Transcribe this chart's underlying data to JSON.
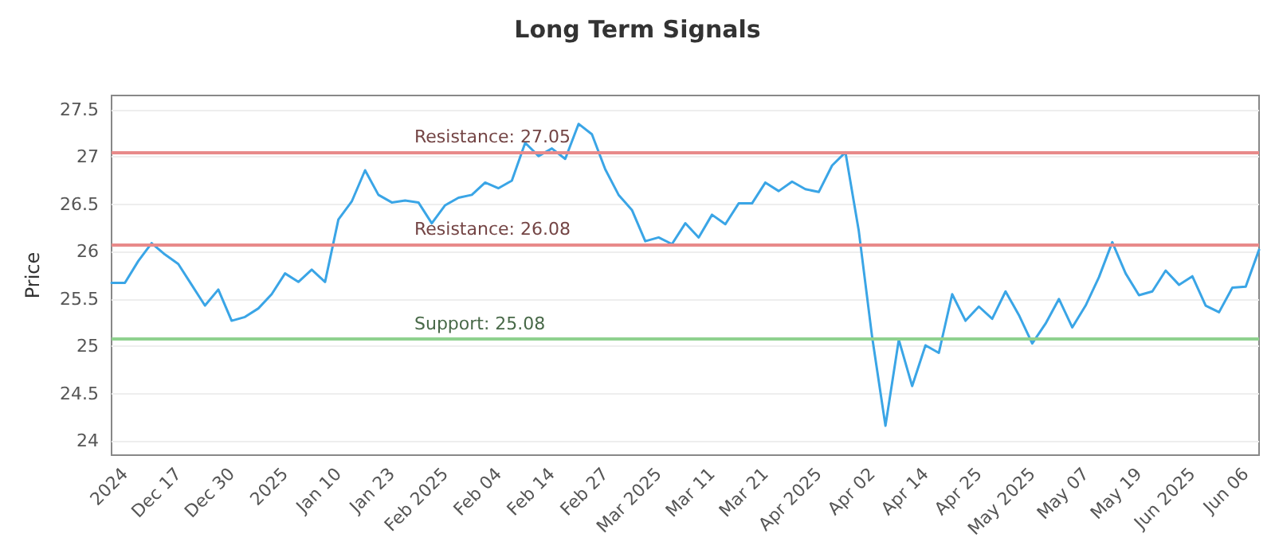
{
  "chart_data": {
    "type": "line",
    "title": "Long Term Signals",
    "ylabel": "Price",
    "categories": [
      null,
      "2024",
      null,
      null,
      null,
      "Dec 17",
      null,
      null,
      null,
      "Dec 30",
      null,
      null,
      null,
      "2025",
      null,
      null,
      null,
      "Jan 10",
      null,
      null,
      null,
      "Jan 23",
      null,
      null,
      null,
      "Feb 2025",
      null,
      null,
      null,
      "Feb 04",
      null,
      null,
      null,
      "Feb 14",
      null,
      null,
      null,
      "Feb 27",
      null,
      null,
      null,
      "Mar 2025",
      null,
      null,
      null,
      "Mar 11",
      null,
      null,
      null,
      "Mar 21",
      null,
      null,
      null,
      "Apr 2025",
      null,
      null,
      null,
      "Apr 02",
      null,
      null,
      null,
      "Apr 14",
      null,
      null,
      null,
      "Apr 25",
      null,
      null,
      null,
      "May 2025",
      null,
      null,
      null,
      "May 07",
      null,
      null,
      null,
      "May 19",
      null,
      null,
      null,
      "Jun 2025",
      null,
      null,
      null,
      "Jun 06",
      null
    ],
    "ylim": [
      23.85,
      27.65
    ],
    "yticks": [
      24.0,
      24.5,
      25.0,
      25.5,
      26.0,
      26.5,
      27.0,
      27.5
    ],
    "grid": "y",
    "marker": "none",
    "line_style": "solid",
    "series": [
      {
        "color": "#3aa5e6",
        "values": [
          25.67,
          25.67,
          25.9,
          26.09,
          25.97,
          25.87,
          25.65,
          25.43,
          25.6,
          25.27,
          25.31,
          25.4,
          25.55,
          25.77,
          25.68,
          25.81,
          25.68,
          26.34,
          26.53,
          26.86,
          26.6,
          26.52,
          26.54,
          26.52,
          26.3,
          26.49,
          26.57,
          26.6,
          26.73,
          26.67,
          26.75,
          27.15,
          27.01,
          27.09,
          26.98,
          27.35,
          27.24,
          26.87,
          26.6,
          26.44,
          26.11,
          26.15,
          26.08,
          26.3,
          26.15,
          26.39,
          26.29,
          26.51,
          26.51,
          26.73,
          26.64,
          26.74,
          26.66,
          26.63,
          26.91,
          27.05,
          26.22,
          25.1,
          24.16,
          25.07,
          24.58,
          25.01,
          24.93,
          25.55,
          25.27,
          25.42,
          25.29,
          25.58,
          25.33,
          25.03,
          25.24,
          25.5,
          25.2,
          25.43,
          25.73,
          26.1,
          25.77,
          25.54,
          25.58,
          25.8,
          25.65,
          25.74,
          25.43,
          25.36,
          25.62,
          25.63,
          26.02
        ]
      }
    ],
    "ref_lines": [
      {
        "axis": "y",
        "value": 27.05,
        "label": "Resistance: 27.05",
        "color": "#e88a8a"
      },
      {
        "axis": "y",
        "value": 26.08,
        "label": "Resistance: 26.08",
        "color": "#e88a8a"
      },
      {
        "axis": "y",
        "value": 25.08,
        "label": "Support: 25.08",
        "color": "#8fd18f"
      }
    ]
  }
}
